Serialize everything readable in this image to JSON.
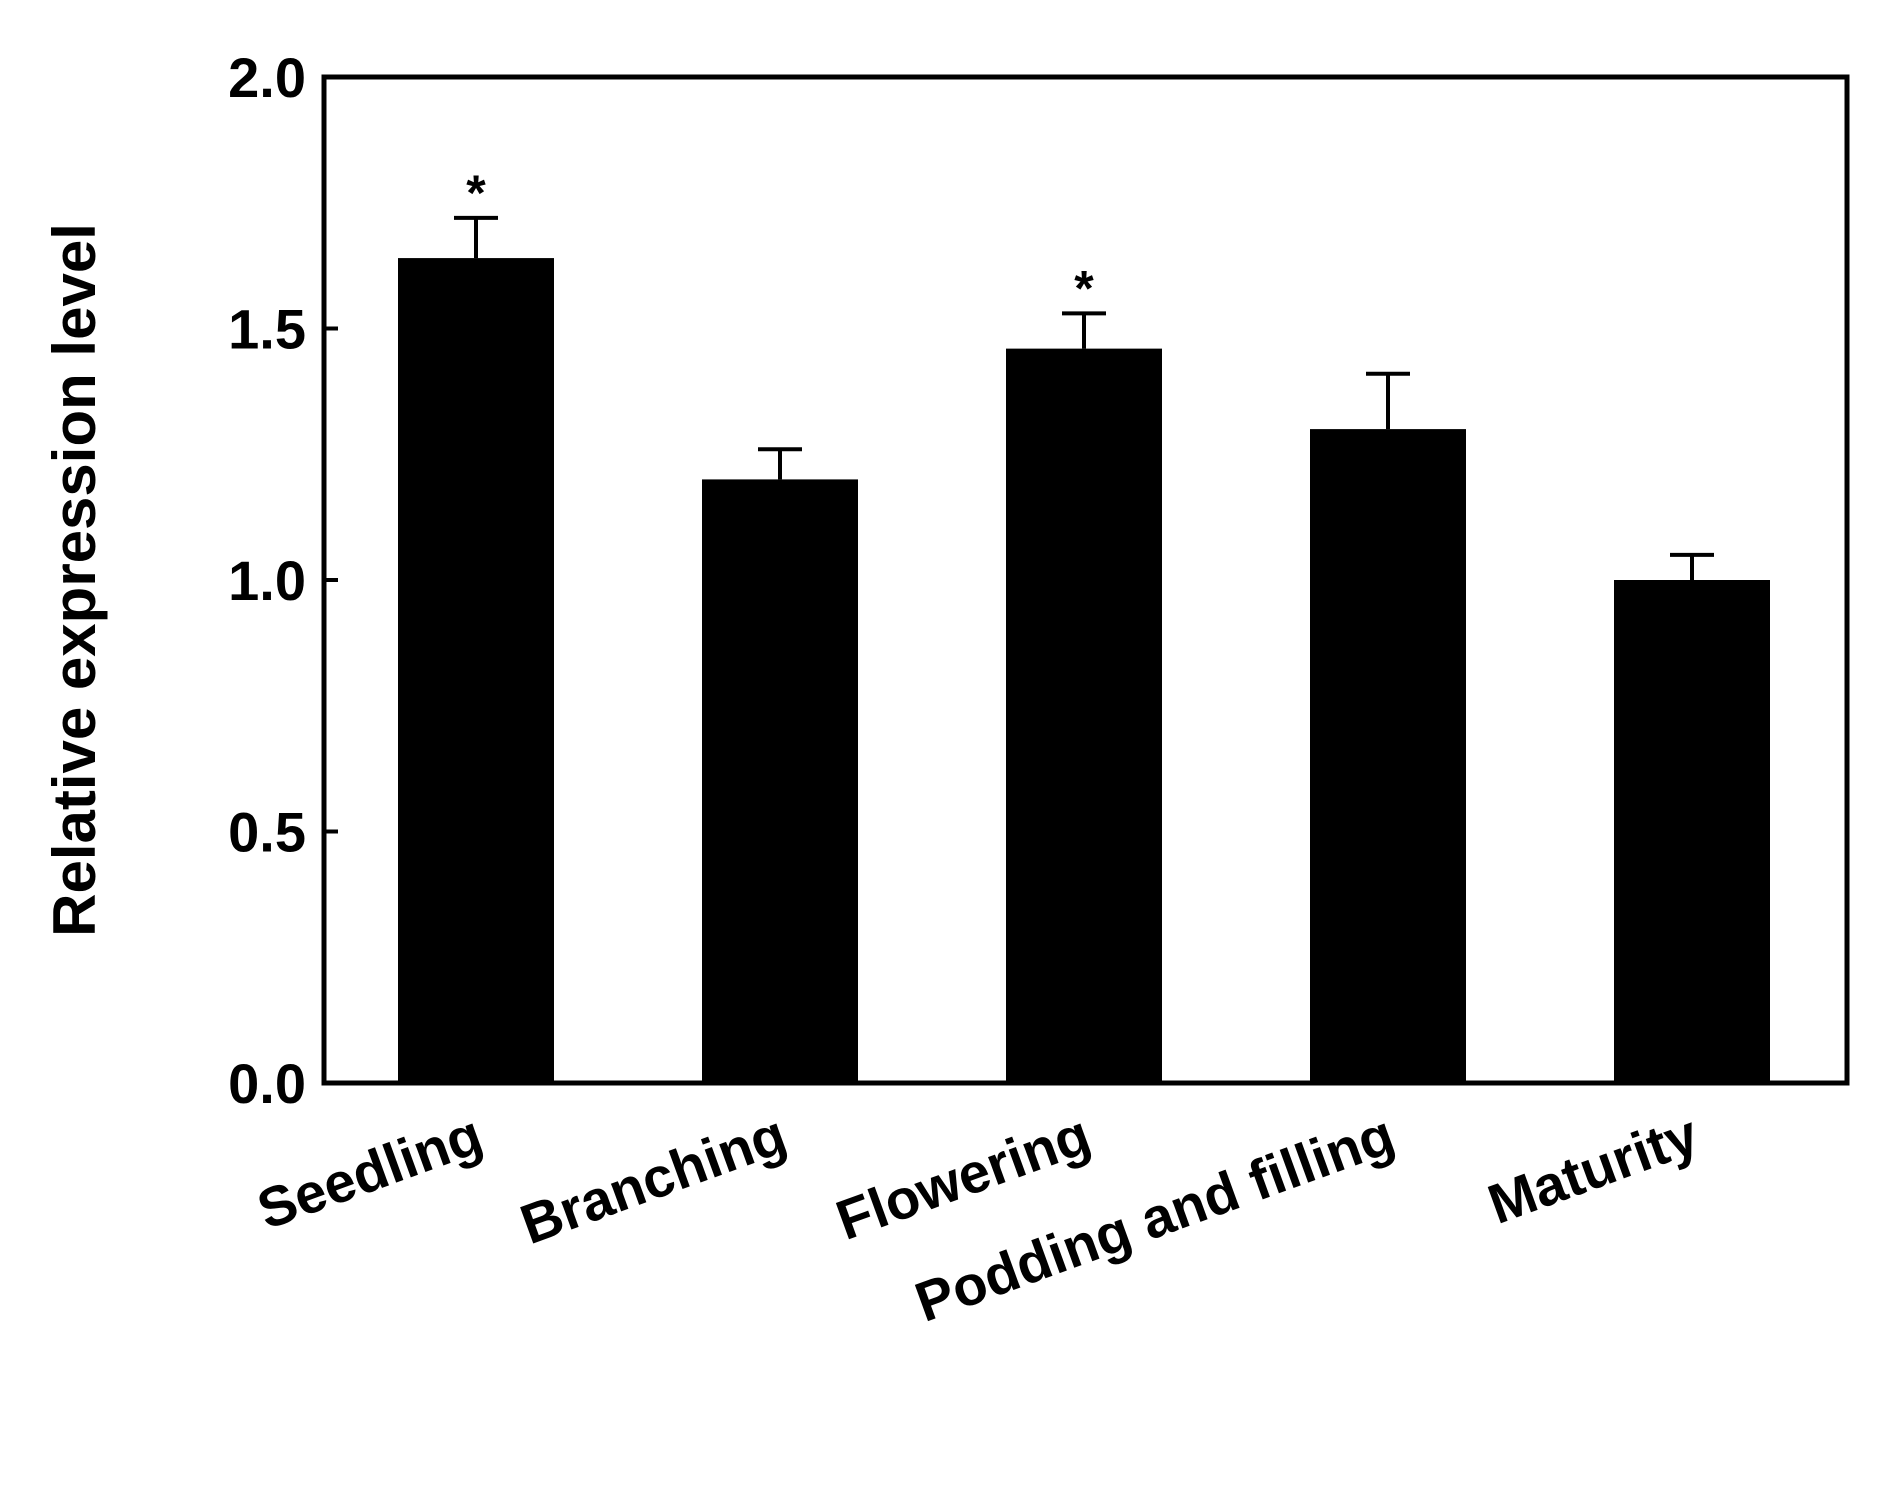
{
  "chart_data": {
    "type": "bar",
    "title": "",
    "xlabel": "",
    "ylabel": "Relative expression level",
    "ylim": [
      0,
      2.0
    ],
    "yticks": [
      "0.0",
      "0.5",
      "1.0",
      "1.5",
      "2.0"
    ],
    "ytick_values": [
      0,
      0.5,
      1.0,
      1.5,
      2.0
    ],
    "grid": false,
    "bar_color": "#000000",
    "categories": [
      "Seedling",
      "Branching",
      "Flowering",
      "Podding and filling",
      "Maturity"
    ],
    "values": [
      1.64,
      1.2,
      1.46,
      1.3,
      1.0
    ],
    "errors": [
      0.08,
      0.06,
      0.07,
      0.11,
      0.05
    ],
    "annotations": [
      "*",
      "",
      "*",
      "",
      ""
    ]
  }
}
